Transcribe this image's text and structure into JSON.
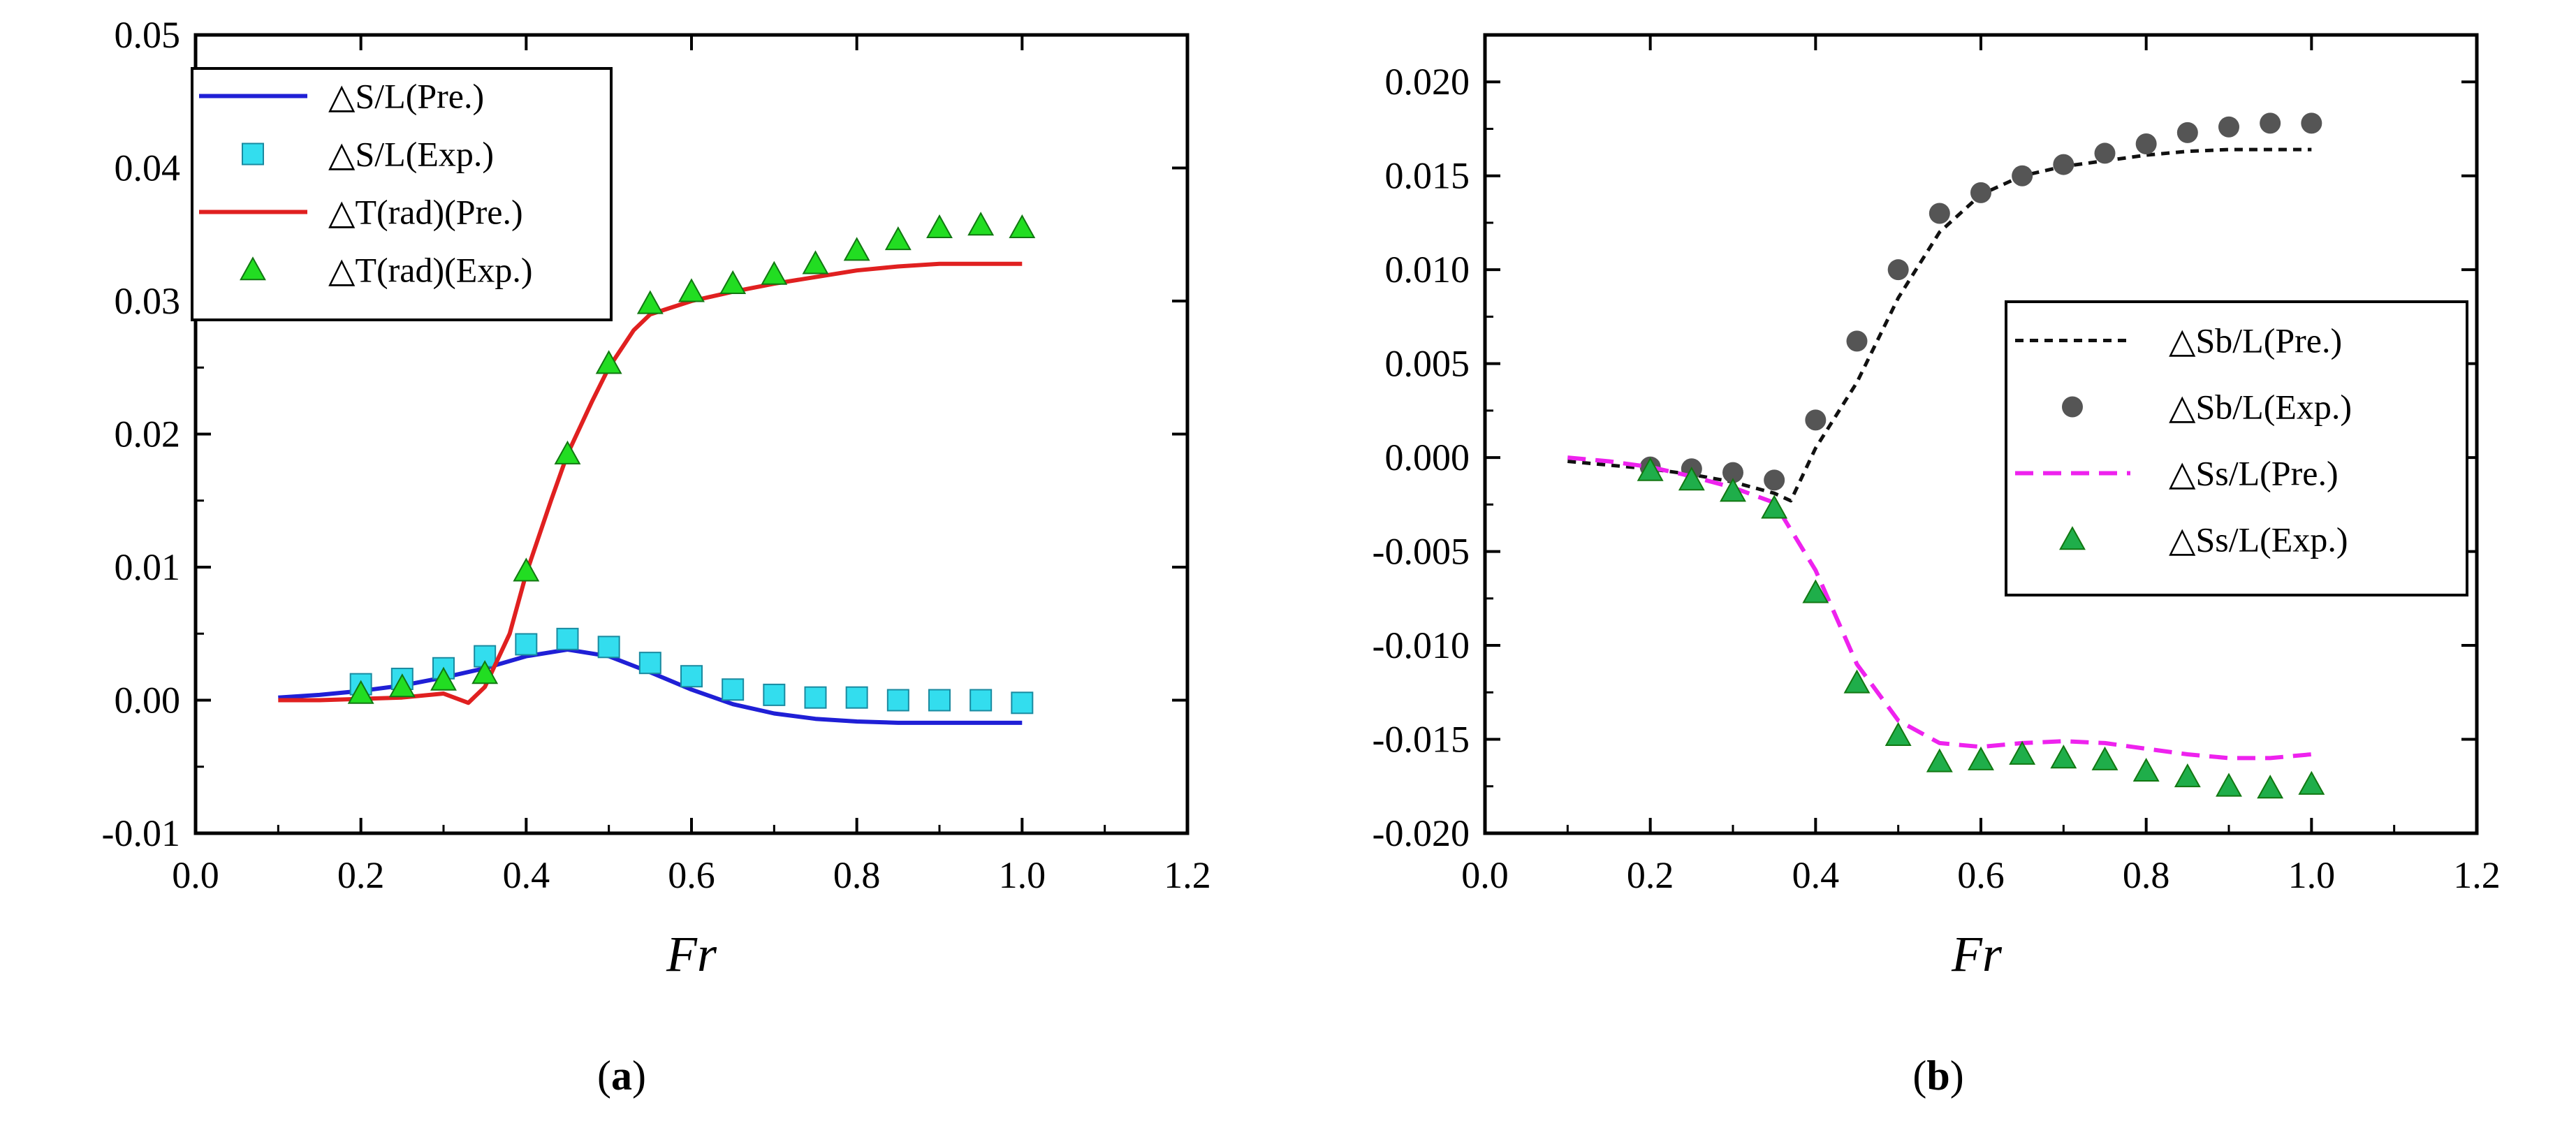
{
  "chart_data": [
    {
      "type": "line",
      "panel_label": "(a)",
      "panel_letter": "a",
      "xlabel": "Fr",
      "ylabel": "",
      "xlim": [
        0.0,
        1.2
      ],
      "ylim": [
        -0.01,
        0.05
      ],
      "xticks": [
        0.0,
        0.2,
        0.4,
        0.6,
        0.8,
        1.0,
        1.2
      ],
      "yticks": [
        -0.01,
        0.0,
        0.01,
        0.02,
        0.03,
        0.04,
        0.05
      ],
      "xtick_labels": [
        "0.0",
        "0.2",
        "0.4",
        "0.6",
        "0.8",
        "1.0",
        "1.2"
      ],
      "ytick_labels": [
        "-0.01",
        "0.00",
        "0.01",
        "0.02",
        "0.03",
        "0.04",
        "0.05"
      ],
      "legend_position": "top-left",
      "series": [
        {
          "name": "△S/L(Pre.)",
          "kind": "line",
          "style": "solid",
          "color": "#1f1fd6",
          "x": [
            0.1,
            0.15,
            0.2,
            0.25,
            0.3,
            0.35,
            0.4,
            0.45,
            0.5,
            0.55,
            0.6,
            0.65,
            0.7,
            0.75,
            0.8,
            0.85,
            0.9,
            0.95,
            1.0
          ],
          "y": [
            0.0002,
            0.0004,
            0.0007,
            0.0011,
            0.0017,
            0.0024,
            0.0033,
            0.0038,
            0.0033,
            0.0021,
            0.0008,
            -0.0003,
            -0.001,
            -0.0014,
            -0.0016,
            -0.0017,
            -0.0017,
            -0.0017,
            -0.0017
          ]
        },
        {
          "name": "△S/L(Exp.)",
          "kind": "marker",
          "marker": "square",
          "color": "#33ddee",
          "x": [
            0.2,
            0.25,
            0.3,
            0.35,
            0.4,
            0.45,
            0.5,
            0.55,
            0.6,
            0.65,
            0.7,
            0.75,
            0.8,
            0.85,
            0.9,
            0.95,
            1.0
          ],
          "y": [
            0.0012,
            0.0016,
            0.0024,
            0.0033,
            0.0042,
            0.0046,
            0.004,
            0.0028,
            0.0018,
            0.0008,
            0.0004,
            0.0002,
            0.0002,
            0.0,
            0.0,
            0.0,
            -0.0002
          ]
        },
        {
          "name": "△T(rad)(Pre.)",
          "kind": "line",
          "style": "solid",
          "color": "#e02020",
          "x": [
            0.1,
            0.15,
            0.2,
            0.25,
            0.3,
            0.33,
            0.35,
            0.38,
            0.4,
            0.43,
            0.45,
            0.48,
            0.5,
            0.53,
            0.55,
            0.6,
            0.65,
            0.7,
            0.75,
            0.8,
            0.85,
            0.9,
            0.95,
            1.0
          ],
          "y": [
            0.0,
            0.0,
            0.0001,
            0.0002,
            0.0005,
            -0.0002,
            0.001,
            0.005,
            0.0095,
            0.015,
            0.0185,
            0.0225,
            0.025,
            0.0278,
            0.029,
            0.03,
            0.0307,
            0.0313,
            0.0318,
            0.0323,
            0.0326,
            0.0328,
            0.0328,
            0.0328
          ]
        },
        {
          "name": "△T(rad)(Exp.)",
          "kind": "marker",
          "marker": "triangle",
          "color": "#22dd22",
          "x": [
            0.2,
            0.25,
            0.3,
            0.35,
            0.4,
            0.45,
            0.5,
            0.55,
            0.6,
            0.65,
            0.7,
            0.75,
            0.8,
            0.85,
            0.9,
            0.95,
            1.0
          ],
          "y": [
            0.0005,
            0.001,
            0.0015,
            0.002,
            0.0097,
            0.0185,
            0.0253,
            0.0298,
            0.0307,
            0.0313,
            0.032,
            0.0328,
            0.0338,
            0.0346,
            0.0355,
            0.0357,
            0.0355
          ]
        }
      ]
    },
    {
      "type": "line",
      "panel_label": "(b)",
      "panel_letter": "b",
      "xlabel": "Fr",
      "ylabel": "",
      "xlim": [
        0.0,
        1.2
      ],
      "ylim": [
        -0.02,
        0.0225
      ],
      "xticks": [
        0.0,
        0.2,
        0.4,
        0.6,
        0.8,
        1.0,
        1.2
      ],
      "yticks": [
        -0.02,
        -0.015,
        -0.01,
        -0.005,
        0.0,
        0.005,
        0.01,
        0.015,
        0.02
      ],
      "xtick_labels": [
        "0.0",
        "0.2",
        "0.4",
        "0.6",
        "0.8",
        "1.0",
        "1.2"
      ],
      "ytick_labels": [
        "-0.020",
        "-0.015",
        "-0.010",
        "-0.005",
        "0.000",
        "0.005",
        "0.010",
        "0.015",
        "0.020"
      ],
      "legend_position": "right",
      "series": [
        {
          "name": "△Sb/L(Pre.)",
          "kind": "line",
          "style": "dotted",
          "color": "#111111",
          "x": [
            0.1,
            0.15,
            0.2,
            0.25,
            0.3,
            0.35,
            0.37,
            0.4,
            0.45,
            0.5,
            0.55,
            0.6,
            0.65,
            0.7,
            0.75,
            0.8,
            0.85,
            0.9,
            0.95,
            1.0
          ],
          "y": [
            -0.0002,
            -0.0004,
            -0.0006,
            -0.0009,
            -0.0013,
            -0.0019,
            -0.0023,
            0.0005,
            0.004,
            0.0085,
            0.012,
            0.014,
            0.015,
            0.0155,
            0.0158,
            0.0161,
            0.0163,
            0.0164,
            0.0164,
            0.0164
          ]
        },
        {
          "name": "△Sb/L(Exp.)",
          "kind": "marker",
          "marker": "circle",
          "color": "#555555",
          "x": [
            0.2,
            0.25,
            0.3,
            0.35,
            0.4,
            0.45,
            0.5,
            0.55,
            0.6,
            0.65,
            0.7,
            0.75,
            0.8,
            0.85,
            0.9,
            0.95,
            1.0
          ],
          "y": [
            -0.0005,
            -0.0006,
            -0.0008,
            -0.0012,
            0.002,
            0.0062,
            0.01,
            0.013,
            0.0141,
            0.015,
            0.0156,
            0.0162,
            0.0167,
            0.0173,
            0.0176,
            0.0178,
            0.0178
          ]
        },
        {
          "name": "△Ss/L(Pre.)",
          "kind": "line",
          "style": "dashed",
          "color": "#ee22ee",
          "x": [
            0.1,
            0.15,
            0.2,
            0.25,
            0.3,
            0.35,
            0.4,
            0.45,
            0.5,
            0.55,
            0.6,
            0.65,
            0.7,
            0.75,
            0.8,
            0.85,
            0.9,
            0.95,
            1.0
          ],
          "y": [
            0.0,
            -0.0002,
            -0.0005,
            -0.001,
            -0.0016,
            -0.0024,
            -0.006,
            -0.011,
            -0.014,
            -0.0152,
            -0.0154,
            -0.0152,
            -0.0151,
            -0.0152,
            -0.0155,
            -0.0158,
            -0.016,
            -0.016,
            -0.0158
          ]
        },
        {
          "name": "△Ss/L(Exp.)",
          "kind": "marker",
          "marker": "triangle",
          "color": "#1fae4a",
          "x": [
            0.2,
            0.25,
            0.3,
            0.35,
            0.4,
            0.45,
            0.5,
            0.55,
            0.6,
            0.65,
            0.7,
            0.75,
            0.8,
            0.85,
            0.9,
            0.95,
            1.0
          ],
          "y": [
            -0.0007,
            -0.0012,
            -0.0018,
            -0.0027,
            -0.0072,
            -0.012,
            -0.0148,
            -0.0162,
            -0.0161,
            -0.0158,
            -0.016,
            -0.0161,
            -0.0167,
            -0.017,
            -0.0175,
            -0.0176,
            -0.0174
          ]
        }
      ]
    }
  ]
}
